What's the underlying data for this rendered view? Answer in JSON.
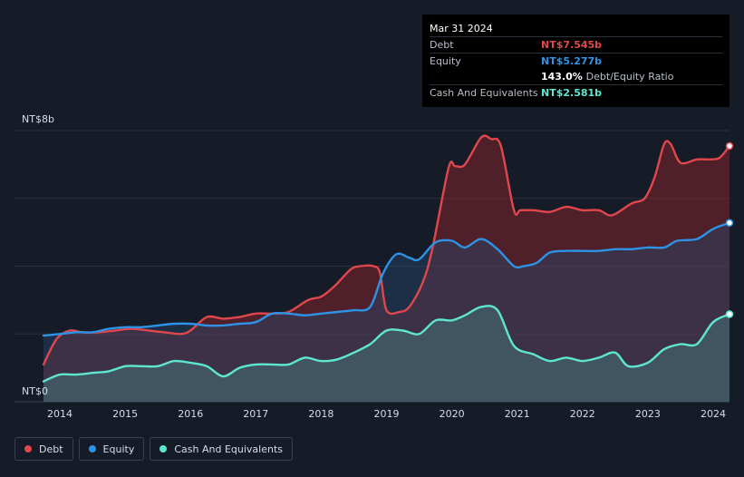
{
  "tooltip": {
    "date": "Mar 31 2024",
    "rows": [
      {
        "label": "Debt",
        "value": "NT$7.545b",
        "color": "#e0474c"
      },
      {
        "label": "Equity",
        "value": "NT$5.277b",
        "color": "#2e93e6"
      },
      {
        "label": "",
        "value": "143.0%",
        "extra": "Debt/Equity Ratio",
        "color": "#ffffff"
      },
      {
        "label": "Cash And Equivalents",
        "value": "NT$2.581b",
        "color": "#5ee6d0"
      }
    ]
  },
  "legend": [
    {
      "label": "Debt",
      "color": "#e0474c"
    },
    {
      "label": "Equity",
      "color": "#2e93e6"
    },
    {
      "label": "Cash And Equivalents",
      "color": "#5ee6d0"
    }
  ],
  "chart_data": {
    "type": "area",
    "ylim": [
      0,
      8
    ],
    "y_tick_labels": [
      "NT$8b",
      "NT$0"
    ],
    "x_tick_labels": [
      "2014",
      "2015",
      "2016",
      "2017",
      "2018",
      "2019",
      "2020",
      "2021",
      "2022",
      "2023",
      "2024"
    ],
    "grid": true,
    "legend_position": "bottom-left",
    "units": "NT$ billions",
    "series": [
      {
        "name": "Debt",
        "color": "#e0474c",
        "points": [
          [
            2013.75,
            1.1
          ],
          [
            2013.95,
            1.85
          ],
          [
            2014.15,
            2.1
          ],
          [
            2014.35,
            2.05
          ],
          [
            2014.6,
            2.05
          ],
          [
            2014.85,
            2.1
          ],
          [
            2015.1,
            2.15
          ],
          [
            2015.35,
            2.1
          ],
          [
            2015.6,
            2.05
          ],
          [
            2015.85,
            2.0
          ],
          [
            2016.0,
            2.1
          ],
          [
            2016.25,
            2.5
          ],
          [
            2016.5,
            2.45
          ],
          [
            2016.75,
            2.5
          ],
          [
            2017.0,
            2.6
          ],
          [
            2017.25,
            2.6
          ],
          [
            2017.5,
            2.65
          ],
          [
            2017.8,
            3.0
          ],
          [
            2018.0,
            3.1
          ],
          [
            2018.2,
            3.4
          ],
          [
            2018.45,
            3.9
          ],
          [
            2018.6,
            4.0
          ],
          [
            2018.8,
            4.0
          ],
          [
            2018.9,
            3.8
          ],
          [
            2019.0,
            2.7
          ],
          [
            2019.2,
            2.65
          ],
          [
            2019.35,
            2.8
          ],
          [
            2019.55,
            3.5
          ],
          [
            2019.7,
            4.5
          ],
          [
            2019.95,
            6.9
          ],
          [
            2020.05,
            6.95
          ],
          [
            2020.2,
            7.0
          ],
          [
            2020.45,
            7.8
          ],
          [
            2020.6,
            7.75
          ],
          [
            2020.75,
            7.55
          ],
          [
            2020.95,
            5.65
          ],
          [
            2021.05,
            5.65
          ],
          [
            2021.25,
            5.65
          ],
          [
            2021.5,
            5.6
          ],
          [
            2021.75,
            5.75
          ],
          [
            2022.0,
            5.65
          ],
          [
            2022.25,
            5.65
          ],
          [
            2022.45,
            5.5
          ],
          [
            2022.75,
            5.85
          ],
          [
            2022.95,
            6.0
          ],
          [
            2023.1,
            6.6
          ],
          [
            2023.25,
            7.6
          ],
          [
            2023.35,
            7.6
          ],
          [
            2023.5,
            7.05
          ],
          [
            2023.75,
            7.15
          ],
          [
            2023.95,
            7.15
          ],
          [
            2024.1,
            7.2
          ],
          [
            2024.25,
            7.545
          ]
        ]
      },
      {
        "name": "Equity",
        "color": "#2e93e6",
        "points": [
          [
            2013.75,
            1.95
          ],
          [
            2014.0,
            2.0
          ],
          [
            2014.25,
            2.05
          ],
          [
            2014.5,
            2.05
          ],
          [
            2014.75,
            2.15
          ],
          [
            2015.0,
            2.2
          ],
          [
            2015.25,
            2.2
          ],
          [
            2015.5,
            2.25
          ],
          [
            2015.75,
            2.3
          ],
          [
            2016.0,
            2.3
          ],
          [
            2016.25,
            2.25
          ],
          [
            2016.5,
            2.25
          ],
          [
            2016.75,
            2.3
          ],
          [
            2017.0,
            2.35
          ],
          [
            2017.25,
            2.6
          ],
          [
            2017.5,
            2.6
          ],
          [
            2017.75,
            2.55
          ],
          [
            2018.0,
            2.6
          ],
          [
            2018.25,
            2.65
          ],
          [
            2018.5,
            2.7
          ],
          [
            2018.75,
            2.8
          ],
          [
            2018.95,
            3.8
          ],
          [
            2019.15,
            4.35
          ],
          [
            2019.35,
            4.25
          ],
          [
            2019.5,
            4.2
          ],
          [
            2019.75,
            4.7
          ],
          [
            2020.0,
            4.75
          ],
          [
            2020.2,
            4.55
          ],
          [
            2020.45,
            4.8
          ],
          [
            2020.7,
            4.5
          ],
          [
            2020.95,
            4.0
          ],
          [
            2021.1,
            4.0
          ],
          [
            2021.3,
            4.1
          ],
          [
            2021.5,
            4.4
          ],
          [
            2021.75,
            4.45
          ],
          [
            2022.0,
            4.45
          ],
          [
            2022.25,
            4.45
          ],
          [
            2022.5,
            4.5
          ],
          [
            2022.75,
            4.5
          ],
          [
            2023.0,
            4.55
          ],
          [
            2023.25,
            4.55
          ],
          [
            2023.45,
            4.75
          ],
          [
            2023.75,
            4.8
          ],
          [
            2024.0,
            5.1
          ],
          [
            2024.25,
            5.277
          ]
        ]
      },
      {
        "name": "Cash And Equivalents",
        "color": "#5ee6d0",
        "points": [
          [
            2013.75,
            0.6
          ],
          [
            2014.0,
            0.8
          ],
          [
            2014.25,
            0.8
          ],
          [
            2014.5,
            0.85
          ],
          [
            2014.75,
            0.9
          ],
          [
            2015.0,
            1.05
          ],
          [
            2015.25,
            1.05
          ],
          [
            2015.5,
            1.05
          ],
          [
            2015.75,
            1.2
          ],
          [
            2016.0,
            1.15
          ],
          [
            2016.25,
            1.05
          ],
          [
            2016.5,
            0.75
          ],
          [
            2016.75,
            1.0
          ],
          [
            2017.0,
            1.1
          ],
          [
            2017.25,
            1.1
          ],
          [
            2017.5,
            1.1
          ],
          [
            2017.75,
            1.3
          ],
          [
            2018.0,
            1.2
          ],
          [
            2018.25,
            1.25
          ],
          [
            2018.5,
            1.45
          ],
          [
            2018.75,
            1.7
          ],
          [
            2019.0,
            2.1
          ],
          [
            2019.25,
            2.1
          ],
          [
            2019.5,
            2.0
          ],
          [
            2019.75,
            2.4
          ],
          [
            2020.0,
            2.4
          ],
          [
            2020.2,
            2.55
          ],
          [
            2020.45,
            2.8
          ],
          [
            2020.7,
            2.7
          ],
          [
            2020.95,
            1.65
          ],
          [
            2021.25,
            1.4
          ],
          [
            2021.5,
            1.2
          ],
          [
            2021.75,
            1.3
          ],
          [
            2022.0,
            1.2
          ],
          [
            2022.25,
            1.3
          ],
          [
            2022.5,
            1.45
          ],
          [
            2022.7,
            1.05
          ],
          [
            2023.0,
            1.15
          ],
          [
            2023.25,
            1.55
          ],
          [
            2023.5,
            1.7
          ],
          [
            2023.75,
            1.7
          ],
          [
            2024.0,
            2.35
          ],
          [
            2024.25,
            2.581
          ]
        ]
      }
    ]
  }
}
